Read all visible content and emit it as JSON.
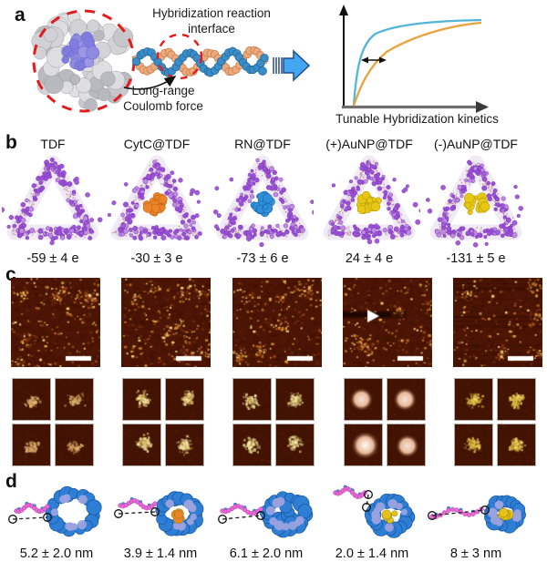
{
  "panel_a": {
    "label": "a",
    "interface_label": {
      "line1": "Hybridization reaction",
      "line2": "interface"
    },
    "force_label": {
      "line1": "Long-range",
      "line2": "Coulomb force"
    },
    "axis_label": "Tunable Hybridization kinetics"
  },
  "panel_b": {
    "label": "b",
    "columns": [
      {
        "name": "TDF",
        "charge": "-59 ± 4 e",
        "core": "none"
      },
      {
        "name": "CytC@TDF",
        "charge": "-30 ± 3 e",
        "core": "orange"
      },
      {
        "name": "RN@TDF",
        "charge": "-73 ± 6 e",
        "core": "blue"
      },
      {
        "name": "(+)AuNP@TDF",
        "charge": "24 ± 4 e",
        "core": "gold"
      },
      {
        "name": "(-)AuNP@TDF",
        "charge": "-131 ± 5 e",
        "core": "gold"
      }
    ]
  },
  "panel_c": {
    "label": "c"
  },
  "panel_d": {
    "label": "d",
    "columns": [
      {
        "distance": "5.2 ± 2.0 nm"
      },
      {
        "distance": "3.9 ± 1.4 nm"
      },
      {
        "distance": "6.1 ± 2.0 nm"
      },
      {
        "distance": "2.0 ± 1.4 nm"
      },
      {
        "distance": "8 ± 3 nm"
      }
    ]
  },
  "chart_data": {
    "type": "line",
    "title": "",
    "xlabel": "Tunable Hybridization kinetics",
    "ylabel": "",
    "axis_ticks": "none (schematic axes with arrowheads)",
    "legend": "none",
    "series": [
      {
        "name": "blue curve (faster kinetics)",
        "color": "#53b6d8",
        "x": [
          0,
          0.06,
          0.12,
          0.2,
          0.3,
          0.45,
          0.65,
          1.0
        ],
        "values": [
          0,
          0.5,
          0.7,
          0.8,
          0.87,
          0.92,
          0.95,
          0.97
        ]
      },
      {
        "name": "orange curve (slower kinetics)",
        "color": "#e9a23c",
        "x": [
          0,
          0.06,
          0.12,
          0.2,
          0.3,
          0.45,
          0.65,
          1.0
        ],
        "values": [
          0,
          0.2,
          0.35,
          0.5,
          0.63,
          0.77,
          0.88,
          0.95
        ]
      }
    ],
    "annotations": [
      "double-headed horizontal arrow between the two curves indicating the tunable kinetic shift"
    ]
  },
  "colors": {
    "curve_fast_blue": "#53b6d8",
    "curve_slow_orange": "#e9a23c",
    "block_arrow_blue": "#45a7f2",
    "dashed_circle_red": "#e21b1b",
    "afm_background": "#4c1504",
    "afm_speckle_gold": "#e5ad50",
    "core_orange_cytc": "#ec8428",
    "core_blue_rn": "#2f8fd8",
    "core_gold_aunp": "#e7c714",
    "counterion_purple": "#9b51d6",
    "d_framework_blue": "#2e7ed5",
    "d_helix_lavender": "#9aa3de",
    "d_strand_pink": "#e86ad8"
  }
}
